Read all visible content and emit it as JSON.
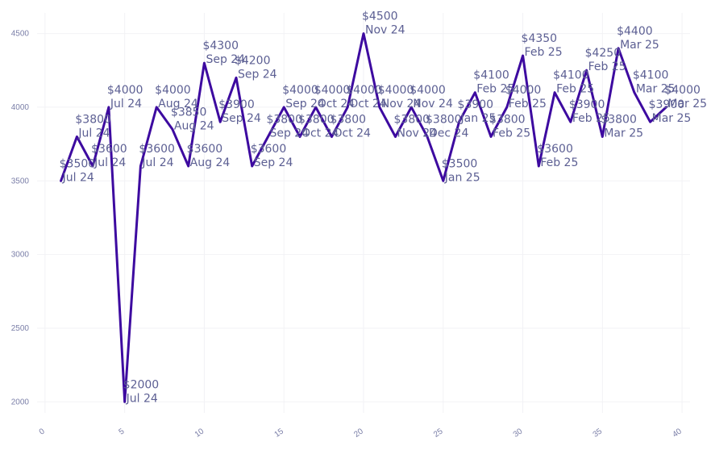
{
  "chart_data": {
    "type": "line",
    "title": "",
    "xlabel": "",
    "ylabel": "",
    "xlim": [
      -0.5,
      40.5
    ],
    "ylim": [
      1925,
      4640
    ],
    "x_ticks": [
      0,
      5,
      10,
      15,
      20,
      25,
      30,
      35,
      40
    ],
    "y_ticks": [
      2000,
      2500,
      3000,
      3500,
      4000,
      4500
    ],
    "grid": true,
    "legend": "none",
    "line_color": "#3d0aa0",
    "series": [
      {
        "x": [
          1,
          2,
          3,
          4,
          5,
          6,
          7,
          8,
          9,
          10,
          11,
          12,
          13,
          14,
          15,
          16,
          17,
          18,
          19,
          20,
          21,
          22,
          23,
          24,
          25,
          26,
          27,
          28,
          29,
          30,
          31,
          32,
          33,
          34,
          35,
          36,
          37,
          38,
          39
        ],
        "y": [
          3500,
          3800,
          3600,
          4000,
          2000,
          3600,
          4000,
          3850,
          3600,
          4300,
          3900,
          4200,
          3600,
          3800,
          4000,
          3800,
          4000,
          3800,
          4000,
          4500,
          4000,
          3800,
          4000,
          3800,
          3500,
          3900,
          4100,
          3800,
          4000,
          4350,
          3600,
          4100,
          3900,
          4250,
          3800,
          4400,
          4100,
          3900,
          4000
        ],
        "labels": [
          [
            "$3500",
            "Jul 24"
          ],
          [
            "$3800",
            "Jul 24"
          ],
          [
            "$3600",
            "Jul 24"
          ],
          [
            "$4000",
            "Jul 24"
          ],
          [
            "$2000",
            "Jul 24"
          ],
          [
            "$3600",
            "Jul 24"
          ],
          [
            "$4000",
            "Aug 24"
          ],
          [
            "$3850",
            "Aug 24"
          ],
          [
            "$3600",
            "Aug 24"
          ],
          [
            "$4300",
            "Sep 24"
          ],
          [
            "$3900",
            "Sep 24"
          ],
          [
            "$4200",
            "Sep 24"
          ],
          [
            "$3600",
            "Sep 24"
          ],
          [
            "$3800",
            "Sep 24"
          ],
          [
            "$4000",
            "Sep 24"
          ],
          [
            "$3800",
            "Oct 24"
          ],
          [
            "$4000",
            "Oct 24"
          ],
          [
            "$3800",
            "Oct 24"
          ],
          [
            "$4000",
            "Oct 24"
          ],
          [
            "$4500",
            "Nov 24"
          ],
          [
            "$4000",
            "Nov 24"
          ],
          [
            "$3800",
            "Nov 24"
          ],
          [
            "$4000",
            "Nov 24"
          ],
          [
            "$3800",
            "Dec 24"
          ],
          [
            "$3500",
            "Jan 25"
          ],
          [
            "$3900",
            "Jan 25"
          ],
          [
            "$4100",
            "Feb 25"
          ],
          [
            "$3800",
            "Feb 25"
          ],
          [
            "$4000",
            "Feb 25"
          ],
          [
            "$4350",
            "Feb 25"
          ],
          [
            "$3600",
            "Feb 25"
          ],
          [
            "$4100",
            "Feb 25"
          ],
          [
            "$3900",
            "Feb 25"
          ],
          [
            "$4250",
            "Feb 25"
          ],
          [
            "$3800",
            "Mar 25"
          ],
          [
            "$4400",
            "Mar 25"
          ],
          [
            "$4100",
            "Mar 25"
          ],
          [
            "$3900",
            "Mar 25"
          ],
          [
            "$4000",
            "Mar 25"
          ]
        ]
      }
    ]
  }
}
